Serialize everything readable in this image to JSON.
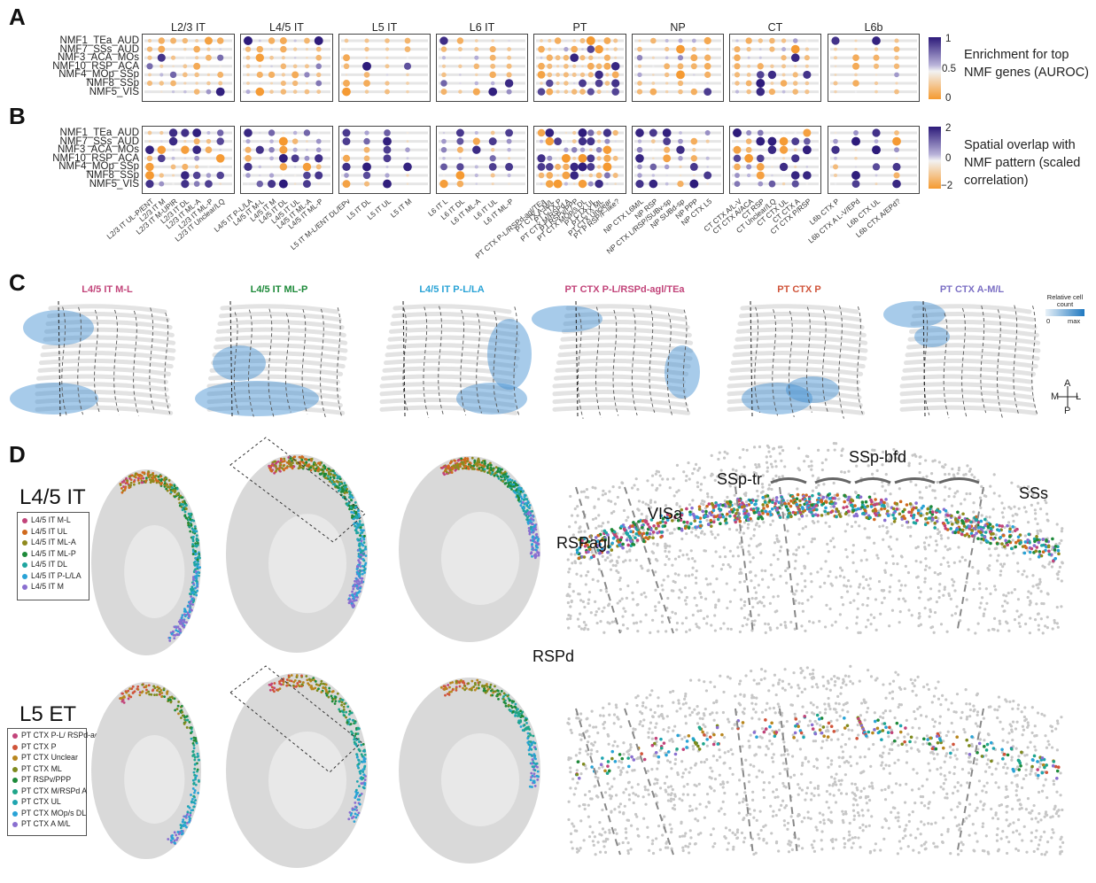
{
  "panels": {
    "A": "A",
    "B": "B",
    "C": "C",
    "D": "D"
  },
  "cell_types": [
    "L2/3 IT",
    "L4/5 IT",
    "L5 IT",
    "L6 IT",
    "PT",
    "NP",
    "CT",
    "L6b"
  ],
  "nmf_rows": [
    "NMF1_TEa_AUD",
    "NMF7_SSs_AUD",
    "NMF3_ACA_MOs",
    "NMF10_RSP_ACA",
    "NMF4_MOp_SSp",
    "NMF8_SSp",
    "NMF5_VIS"
  ],
  "legend_a": {
    "title": "Enrichment for top NMF genes (AUROC)",
    "ticks": [
      "1",
      "0.5",
      "0"
    ]
  },
  "legend_b": {
    "title": "Spatial overlap with NMF pattern (scaled correlation)",
    "ticks": [
      "2",
      "0",
      "−2"
    ]
  },
  "x_labels": [
    {
      "group": "L2/3 IT",
      "labels": [
        "L2/3 IT UL-P/ENT",
        "L2/3 IT M",
        "L2/3 IT M-UPIR",
        "L2/3 IT DL",
        "L2/3 IT ML-A",
        "L2/3 IT ML-P",
        "L2/3 IT Unclear/LQ"
      ]
    },
    {
      "group": "L4/5 IT",
      "labels": [
        "L4/5 IT P-L/LA",
        "L4/5 IT M-L",
        "L4/5 IT M",
        "L4/5 IT DL",
        "L4/5 IT UL",
        "L4/5 IT ML-A",
        "L4/5 IT ML-P"
      ]
    },
    {
      "group": "L5 IT",
      "labels": [
        "L5 IT M-L/ENT DL/EPv",
        "L5 IT DL",
        "L5 IT UL",
        "L5 IT M"
      ]
    },
    {
      "group": "L6 IT",
      "labels": [
        "L6 IT L",
        "L6 IT DL",
        "L6 IT ML-A",
        "L6 IT UL",
        "L6 IT ML-P"
      ]
    },
    {
      "group": "PT",
      "labels": [
        "PT CTX P-L/RSPd-agl/TEa",
        "PT CTX A-M/L",
        "PT CTX P",
        "PT CTX M/RSPd A",
        "PT RSPv/PPP",
        "PT CTX MOp/s DL",
        "PT CTX UL",
        "PT CTX ML",
        "PT CTX Unclear",
        "PT P RSP/F-like?"
      ]
    },
    {
      "group": "NP",
      "labels": [
        "NP CTX L6M/L",
        "NP RSP",
        "NP CTX L/RSP/SUBv-sp",
        "NP SUBd-sp",
        "NP PPP",
        "NP CTX L5"
      ]
    },
    {
      "group": "CT",
      "labels": [
        "CT CTX A/L-V",
        "CT CTX A/ACA",
        "CT RSP",
        "CT Unclear/LQ",
        "CT CTX UL",
        "CT CTX A",
        "CT CTX P/RSP"
      ]
    },
    {
      "group": "L6b",
      "labels": [
        "L6b CTX P",
        "L6b CTX A L-V/EPd",
        "L6b CTX UL",
        "L6b CTX A/EPd?"
      ]
    }
  ],
  "c_titles": [
    {
      "text": "L4/5 IT M-L",
      "color": "#c2447a"
    },
    {
      "text": "L4/5 IT ML-P",
      "color": "#1e8a3a"
    },
    {
      "text": "L4/5 IT P-L/LA",
      "color": "#29a3d6"
    },
    {
      "text": "PT CTX P-L/RSPd-agl/TEa",
      "color": "#c2447a"
    },
    {
      "text": "PT CTX P",
      "color": "#d0543a"
    },
    {
      "text": "PT CTX A-M/L",
      "color": "#7b6fc4"
    }
  ],
  "c_legend": {
    "title": "Relative cell count",
    "min": "0",
    "max": "max"
  },
  "compass": {
    "a": "A",
    "p": "P",
    "m": "M",
    "l": "L"
  },
  "d_top": {
    "title": "L4/5 IT",
    "legend": [
      {
        "label": "L4/5 IT M-L",
        "color": "#c2447a"
      },
      {
        "label": "L4/5 IT UL",
        "color": "#d06a1e"
      },
      {
        "label": "L4/5 IT ML-A",
        "color": "#8f8a1e"
      },
      {
        "label": "L4/5 IT ML-P",
        "color": "#1e8a3a"
      },
      {
        "label": "L4/5 IT DL",
        "color": "#1fa5a0"
      },
      {
        "label": "L4/5 IT P-L/LA",
        "color": "#29a3d6"
      },
      {
        "label": "L4/5 IT M",
        "color": "#8a6fd0"
      }
    ]
  },
  "d_bottom": {
    "title": "L5 ET",
    "legend": [
      {
        "label": "PT CTX P-L/ RSPd-agl/TEa",
        "color": "#c2447a"
      },
      {
        "label": "PT CTX P",
        "color": "#d0543a"
      },
      {
        "label": "PT CTX Unclear",
        "color": "#b8861e"
      },
      {
        "label": "PT CTX ML",
        "color": "#7e8a1e"
      },
      {
        "label": "PT RSPv/PPP",
        "color": "#1e8a3a"
      },
      {
        "label": "PT CTX M/RSPd A",
        "color": "#1fa58a"
      },
      {
        "label": "PT CTX UL",
        "color": "#1fa5b0"
      },
      {
        "label": "PT CTX MOp/s DL",
        "color": "#29a3d6"
      },
      {
        "label": "PT CTX A M/L",
        "color": "#8a6fd0"
      }
    ]
  },
  "regions": {
    "ssp_bfd": "SSp-bfd",
    "ssp_tr": "SSp-tr",
    "visa": "VISa",
    "rspagl": "RSPagl",
    "sss": "SSs",
    "rspd": "RSPd"
  }
}
